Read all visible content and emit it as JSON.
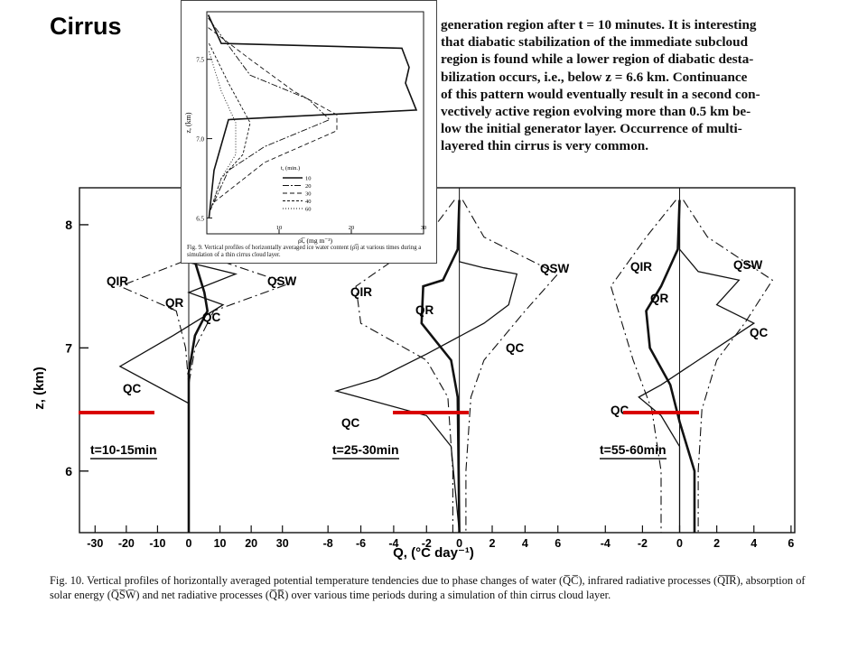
{
  "slide_title": "Cirrus",
  "body_text_lines": [
    "generation region after t = 10 minutes. It is interesting",
    "that diabatic stabilization of the immediate subcloud",
    "region is found while a lower region of diabatic desta-",
    "bilization occurs, i.e., below z = 6.6 km. Continuance",
    "of this pattern would eventually result in a second con-",
    "vectively active region evolving more than 0.5 km be-",
    "low the initial generator layer. Occurrence of multi-",
    "layered thin cirrus is very common."
  ],
  "fig9": {
    "caption": "Fig. 9. Vertical profiles of horizontally averaged ice water content (ρ̄ι̅) at various times during a simulation of a thin cirrus cloud layer.",
    "ylabel": "z, (km)",
    "xlabel": "ρ̄ι̅, (mg m⁻³)",
    "y_ticks": [
      "7.5",
      "7.0",
      "6.5"
    ],
    "x_ticks": [
      "10",
      "20",
      "30"
    ],
    "legend_title": "t, (min.)",
    "legend_entries": [
      "10",
      "20",
      "30",
      "40",
      "60"
    ]
  },
  "fig10": {
    "ylabel": "z, (km)",
    "xlabel": "Q, (°C day⁻¹)",
    "y_ticks": [
      "8",
      "7",
      "6"
    ],
    "panels": [
      {
        "time_label": "t=10-15min",
        "x_ticks": [
          "-30",
          "-20",
          "-10",
          "0",
          "10",
          "20",
          "30"
        ],
        "curve_labels": [
          "QIR",
          "QSW",
          "QR",
          "QC",
          "QC"
        ]
      },
      {
        "time_label": "t=25-30min",
        "x_ticks": [
          "-8",
          "-6",
          "-4",
          "-2",
          "0",
          "2",
          "4",
          "6"
        ],
        "curve_labels": [
          "QIR",
          "QSW",
          "QR",
          "QC",
          "QC"
        ]
      },
      {
        "time_label": "t=55-60min",
        "x_ticks": [
          "-4",
          "-2",
          "0",
          "2",
          "4",
          "6"
        ],
        "curve_labels": [
          "QIR",
          "QSW",
          "QR",
          "QC",
          "QC"
        ]
      }
    ],
    "caption": "Fig. 10. Vertical profiles of horizontally averaged potential temperature tendencies due to phase changes of water (Q̅C̅), infrared radiative processes (Q̅I̅R̅), absorption of solar energy (Q̅S̅W̅) and net radiative processes (Q̅R̅) over various time periods during a simulation of thin cirrus cloud layer."
  },
  "colors": {
    "highlight": "#d90000",
    "ink": "#111111"
  },
  "chart_data": [
    {
      "type": "line",
      "ylim": [
        6.4,
        7.8
      ],
      "xlim": [
        0,
        30
      ],
      "series": [
        {
          "name": "10",
          "points": [
            [
              0.2,
              7.78
            ],
            [
              2,
              7.6
            ],
            [
              27,
              7.57
            ],
            [
              28,
              7.45
            ],
            [
              27.5,
              7.35
            ],
            [
              29,
              7.18
            ],
            [
              3,
              7.12
            ],
            [
              1,
              6.8
            ],
            [
              0.3,
              6.5
            ]
          ]
        },
        {
          "name": "20",
          "points": [
            [
              0.2,
              7.76
            ],
            [
              6,
              7.4
            ],
            [
              14,
              7.25
            ],
            [
              17,
              7.12
            ],
            [
              8,
              6.95
            ],
            [
              3,
              6.8
            ],
            [
              0.5,
              6.55
            ]
          ]
        },
        {
          "name": "30",
          "points": [
            [
              0.2,
              7.7
            ],
            [
              6,
              7.5
            ],
            [
              12,
              7.3
            ],
            [
              18,
              7.15
            ],
            [
              18,
              7.05
            ],
            [
              8,
              6.85
            ],
            [
              1,
              6.6
            ]
          ]
        },
        {
          "name": "40",
          "points": [
            [
              0.3,
              7.6
            ],
            [
              3,
              7.35
            ],
            [
              6,
              7.1
            ],
            [
              5,
              6.9
            ],
            [
              2,
              6.75
            ],
            [
              0.5,
              6.55
            ]
          ]
        },
        {
          "name": "60",
          "points": [
            [
              0.3,
              7.55
            ],
            [
              2,
              7.3
            ],
            [
              4,
              7.1
            ],
            [
              4,
              6.9
            ],
            [
              2,
              6.75
            ],
            [
              0.5,
              6.55
            ]
          ]
        }
      ]
    },
    {
      "type": "line",
      "ylim": [
        5.5,
        8.3
      ],
      "panels": [
        {
          "time_label": "t=10-15min",
          "xlim": [
            -35,
            35
          ],
          "series": [
            {
              "name": "QIR",
              "points": [
                [
                  0,
                  8
                ],
                [
                  -2,
                  7.7
                ],
                [
                  -22,
                  7.5
                ],
                [
                  -4,
                  7.3
                ],
                [
                  -1,
                  7
                ],
                [
                  0,
                  6.7
                ],
                [
                  0,
                  5.5
                ]
              ]
            },
            {
              "name": "QSW",
              "points": [
                [
                  0,
                  8
                ],
                [
                  5,
                  7.75
                ],
                [
                  32,
                  7.52
                ],
                [
                  8,
                  7.3
                ],
                [
                  2,
                  7
                ],
                [
                  0,
                  6.7
                ],
                [
                  0,
                  5.5
                ]
              ]
            },
            {
              "name": "QR",
              "points": [
                [
                  0,
                  8
                ],
                [
                  2,
                  7.7
                ],
                [
                  5,
                  7.45
                ],
                [
                  6,
                  7.3
                ],
                [
                  2,
                  7.1
                ],
                [
                  0,
                  6.8
                ],
                [
                  0,
                  5.5
                ]
              ]
            },
            {
              "name": "QC",
              "points": [
                [
                  0,
                  8
                ],
                [
                  -1,
                  7.7
                ],
                [
                  15,
                  7.6
                ],
                [
                  0,
                  7.45
                ],
                [
                  11,
                  7.35
                ],
                [
                  -5,
                  7.1
                ],
                [
                  -22,
                  6.85
                ],
                [
                  0,
                  6.55
                ],
                [
                  0,
                  5.5
                ]
              ]
            }
          ]
        },
        {
          "time_label": "t=25-30min",
          "xlim": [
            -9,
            7.5
          ],
          "series": [
            {
              "name": "QIR",
              "points": [
                [
                  -0.3,
                  8.2
                ],
                [
                  -2,
                  7.9
                ],
                [
                  -6.3,
                  7.5
                ],
                [
                  -6,
                  7.2
                ],
                [
                  -2,
                  6.9
                ],
                [
                  -0.7,
                  6.6
                ],
                [
                  -0.4,
                  6
                ],
                [
                  -0.4,
                  5.5
                ]
              ]
            },
            {
              "name": "QSW",
              "points": [
                [
                  0.2,
                  8.2
                ],
                [
                  1.5,
                  7.9
                ],
                [
                  6,
                  7.6
                ],
                [
                  4,
                  7.3
                ],
                [
                  1.5,
                  6.9
                ],
                [
                  0.7,
                  6.6
                ],
                [
                  0.4,
                  6
                ],
                [
                  0.4,
                  5.5
                ]
              ]
            },
            {
              "name": "QR",
              "points": [
                [
                  0,
                  8.2
                ],
                [
                  -0.1,
                  7.8
                ],
                [
                  -1,
                  7.55
                ],
                [
                  -2.2,
                  7.5
                ],
                [
                  -2.3,
                  7.2
                ],
                [
                  -0.5,
                  6.9
                ],
                [
                  -0.1,
                  6.6
                ],
                [
                  0,
                  5.5
                ]
              ]
            },
            {
              "name": "QC",
              "points": [
                [
                  0,
                  8.2
                ],
                [
                  0,
                  7.7
                ],
                [
                  1.5,
                  7.65
                ],
                [
                  3.5,
                  7.6
                ],
                [
                  3,
                  7.35
                ],
                [
                  1.5,
                  7.2
                ],
                [
                  -2,
                  6.95
                ],
                [
                  -5,
                  6.75
                ],
                [
                  -7.5,
                  6.65
                ],
                [
                  -2,
                  6.45
                ],
                [
                  -0.5,
                  6.2
                ],
                [
                  0,
                  5.5
                ]
              ]
            }
          ]
        },
        {
          "time_label": "t=55-60min",
          "xlim": [
            -4.5,
            6.2
          ],
          "series": [
            {
              "name": "QIR",
              "points": [
                [
                  -0.2,
                  8.2
                ],
                [
                  -1.8,
                  7.9
                ],
                [
                  -3.7,
                  7.5
                ],
                [
                  -2.5,
                  6.9
                ],
                [
                  -1.5,
                  6.5
                ],
                [
                  -1,
                  6
                ],
                [
                  -1,
                  5.5
                ]
              ]
            },
            {
              "name": "QSW",
              "points": [
                [
                  0.2,
                  8.2
                ],
                [
                  1.5,
                  7.9
                ],
                [
                  5,
                  7.55
                ],
                [
                  3.5,
                  7.2
                ],
                [
                  2,
                  6.9
                ],
                [
                  1.2,
                  6.5
                ],
                [
                  1,
                  6
                ],
                [
                  1,
                  5.5
                ]
              ]
            },
            {
              "name": "QR",
              "points": [
                [
                  0,
                  8.2
                ],
                [
                  -0.1,
                  7.8
                ],
                [
                  -1,
                  7.5
                ],
                [
                  -1.8,
                  7.3
                ],
                [
                  -1.6,
                  7
                ],
                [
                  -0.5,
                  6.7
                ],
                [
                  0,
                  6.4
                ],
                [
                  0.8,
                  6
                ],
                [
                  0.8,
                  5.5
                ]
              ]
            },
            {
              "name": "QC",
              "points": [
                [
                  0,
                  8.2
                ],
                [
                  0,
                  7.8
                ],
                [
                  1,
                  7.62
                ],
                [
                  3.2,
                  7.55
                ],
                [
                  2,
                  7.35
                ],
                [
                  4,
                  7.2
                ],
                [
                  1,
                  6.9
                ],
                [
                  -1,
                  6.7
                ],
                [
                  -2.2,
                  6.6
                ],
                [
                  -1,
                  6.45
                ],
                [
                  0,
                  6.2
                ],
                [
                  0,
                  5.5
                ]
              ]
            }
          ]
        }
      ]
    }
  ]
}
